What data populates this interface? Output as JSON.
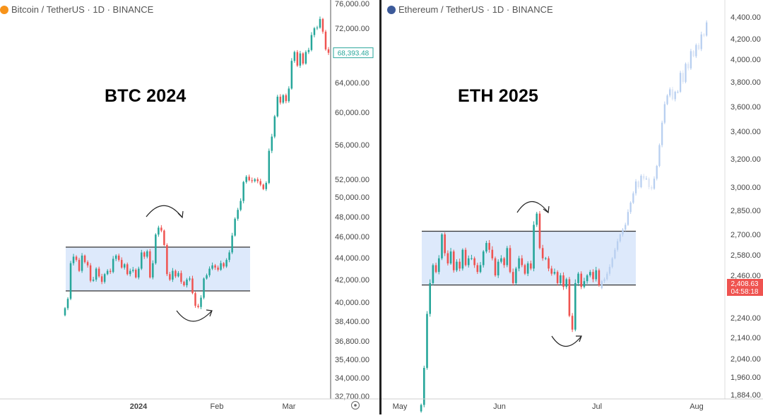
{
  "colors": {
    "up": "#26a69a",
    "down": "#ef5350",
    "range_fill": "#dde9fb",
    "projection": "#b8cff0",
    "axis_text": "#444444",
    "divider": "#555555",
    "current_price_bg": "#ef5350"
  },
  "panels": [
    {
      "id": "btc",
      "header": "Bitcoin / TetherUS · 1D · BINANCE",
      "coin_icon": "bitcoin-icon",
      "coin_color": "#f7931a",
      "big_label": "BTC 2024",
      "current_price": "68,393.48",
      "x_ticks": [
        "2024",
        "Feb",
        "Mar"
      ],
      "settings_icon": "target-icon"
    },
    {
      "id": "eth",
      "header": "Ethereum / TetherUS · 1D · BINANCE",
      "coin_icon": "ethereum-icon",
      "coin_color": "#3c5a9a",
      "big_label": "ETH 2025",
      "current_price": "2,408.63",
      "countdown": "04:58:18",
      "x_ticks": [
        "May",
        "Jun",
        "Jul",
        "Aug"
      ]
    }
  ],
  "chart_data": [
    {
      "type": "candlestick",
      "title": "Bitcoin / TetherUS · 1D · BINANCE",
      "annotation": "BTC 2024",
      "y_ticks": [
        "76,000.00",
        "72,000.00",
        "64,000.00",
        "60,000.00",
        "56,000.00",
        "52,000.00",
        "50,000.00",
        "48,000.00",
        "46,000.00",
        "44,000.00",
        "42,000.00",
        "40,000.00",
        "38,400.00",
        "36,800.00",
        "35,400.00",
        "34,000.00",
        "32,700.00"
      ],
      "y_tick_values": [
        76000,
        72000,
        64000,
        60000,
        56000,
        52000,
        50000,
        48000,
        46000,
        44000,
        42000,
        40000,
        38400,
        36800,
        35400,
        34000,
        32700
      ],
      "ylim": [
        32700,
        76000
      ],
      "x_ticks": [
        "2024",
        "Feb",
        "Mar"
      ],
      "range_box": {
        "upper": 45000,
        "lower": 41000
      },
      "last_price": 68393.48,
      "closes": [
        39500,
        40300,
        43500,
        44100,
        43800,
        42800,
        44200,
        43600,
        43300,
        41900,
        42000,
        43000,
        42300,
        41800,
        42500,
        42800,
        42700,
        43900,
        44200,
        43800,
        43100,
        43400,
        42500,
        42800,
        42900,
        42200,
        43000,
        44500,
        44100,
        44600,
        42200,
        43500,
        46200,
        46900,
        46600,
        45200,
        42500,
        42000,
        42800,
        42300,
        42600,
        41800,
        41500,
        42000,
        42100,
        40800,
        39700,
        39600,
        40400,
        42100,
        42400,
        43000,
        43300,
        43100,
        42900,
        43500,
        43200,
        43800,
        44500,
        46100,
        47800,
        48700,
        49600,
        51700,
        52300,
        51900,
        51800,
        52000,
        51800,
        51400,
        50900,
        51600,
        55300,
        57000,
        59500,
        62100,
        61300,
        62300,
        61500,
        63200,
        67200,
        68500,
        66500,
        68300,
        66800,
        68500,
        68800,
        71000,
        72000,
        72100,
        73500,
        71500,
        68900,
        68393
      ]
    },
    {
      "type": "candlestick",
      "title": "Ethereum / TetherUS · 1D · BINANCE",
      "annotation": "ETH 2025",
      "y_ticks": [
        "4,400.00",
        "4,200.00",
        "4,000.00",
        "3,800.00",
        "3,600.00",
        "3,400.00",
        "3,200.00",
        "3,000.00",
        "2,850.00",
        "2,700.00",
        "2,580.00",
        "2,460.00",
        "2,240.00",
        "2,140.00",
        "2,040.00",
        "1,960.00",
        "1,884.00"
      ],
      "y_tick_values": [
        4400,
        4200,
        4000,
        3800,
        3600,
        3400,
        3200,
        3000,
        2850,
        2700,
        2580,
        2460,
        2240,
        2140,
        2040,
        1960,
        1884
      ],
      "ylim": [
        1884,
        4400
      ],
      "x_ticks": [
        "May",
        "Jun",
        "Jul",
        "Aug"
      ],
      "range_box": {
        "upper": 2720,
        "lower": 2410
      },
      "last_price": 2408.63,
      "closes": [
        1840,
        2000,
        2260,
        2420,
        2520,
        2480,
        2560,
        2700,
        2590,
        2530,
        2600,
        2490,
        2540,
        2500,
        2610,
        2520,
        2560,
        2560,
        2520,
        2480,
        2520,
        2600,
        2650,
        2610,
        2560,
        2460,
        2540,
        2560,
        2520,
        2620,
        2480,
        2420,
        2500,
        2560,
        2520,
        2470,
        2530,
        2500,
        2760,
        2830,
        2620,
        2560,
        2560,
        2500,
        2470,
        2480,
        2420,
        2460,
        2400,
        2440,
        2250,
        2180,
        2420,
        2470,
        2400,
        2430,
        2460,
        2480,
        2440,
        2490,
        2409
      ],
      "projection_closes": [
        2430,
        2440,
        2470,
        2510,
        2560,
        2610,
        2660,
        2700,
        2730,
        2760,
        2840,
        2900,
        2960,
        3040,
        3000,
        3080,
        3060,
        3060,
        3000,
        2990,
        3060,
        3150,
        3300,
        3470,
        3620,
        3690,
        3740,
        3660,
        3720,
        3720,
        3880,
        3800,
        3960,
        3920,
        4080,
        4030,
        4140,
        4100,
        4240,
        4230,
        4350
      ]
    }
  ]
}
